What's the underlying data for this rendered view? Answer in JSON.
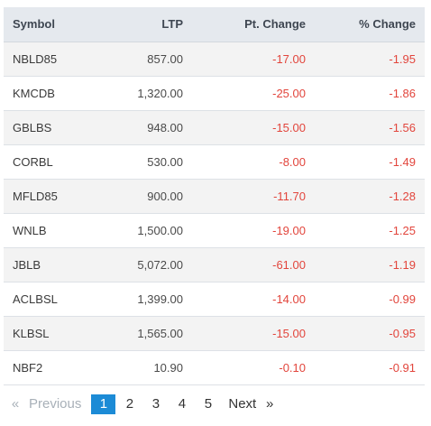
{
  "table": {
    "headers": {
      "symbol": "Symbol",
      "ltp": "LTP",
      "pt_change": "Pt. Change",
      "pct_change": "% Change"
    },
    "rows": [
      {
        "symbol": "NBLD85",
        "ltp": "857.00",
        "pt_change": "-17.00",
        "pct_change": "-1.95"
      },
      {
        "symbol": "KMCDB",
        "ltp": "1,320.00",
        "pt_change": "-25.00",
        "pct_change": "-1.86"
      },
      {
        "symbol": "GBLBS",
        "ltp": "948.00",
        "pt_change": "-15.00",
        "pct_change": "-1.56"
      },
      {
        "symbol": "CORBL",
        "ltp": "530.00",
        "pt_change": "-8.00",
        "pct_change": "-1.49"
      },
      {
        "symbol": "MFLD85",
        "ltp": "900.00",
        "pt_change": "-11.70",
        "pct_change": "-1.28"
      },
      {
        "symbol": "WNLB",
        "ltp": "1,500.00",
        "pt_change": "-19.00",
        "pct_change": "-1.25"
      },
      {
        "symbol": "JBLB",
        "ltp": "5,072.00",
        "pt_change": "-61.00",
        "pct_change": "-1.19"
      },
      {
        "symbol": "ACLBSL",
        "ltp": "1,399.00",
        "pt_change": "-14.00",
        "pct_change": "-0.99"
      },
      {
        "symbol": "KLBSL",
        "ltp": "1,565.00",
        "pt_change": "-15.00",
        "pct_change": "-0.95"
      },
      {
        "symbol": "NBF2",
        "ltp": "10.90",
        "pt_change": "-0.10",
        "pct_change": "-0.91"
      }
    ]
  },
  "pagination": {
    "first_arrow": "«",
    "previous_label": "Previous",
    "pages": [
      "1",
      "2",
      "3",
      "4",
      "5"
    ],
    "current_page": "1",
    "next_label": "Next",
    "last_arrow": "»"
  },
  "colors": {
    "negative": "#e2453c",
    "header_bg": "#e5e9ee",
    "active_page": "#1c8bd6"
  }
}
